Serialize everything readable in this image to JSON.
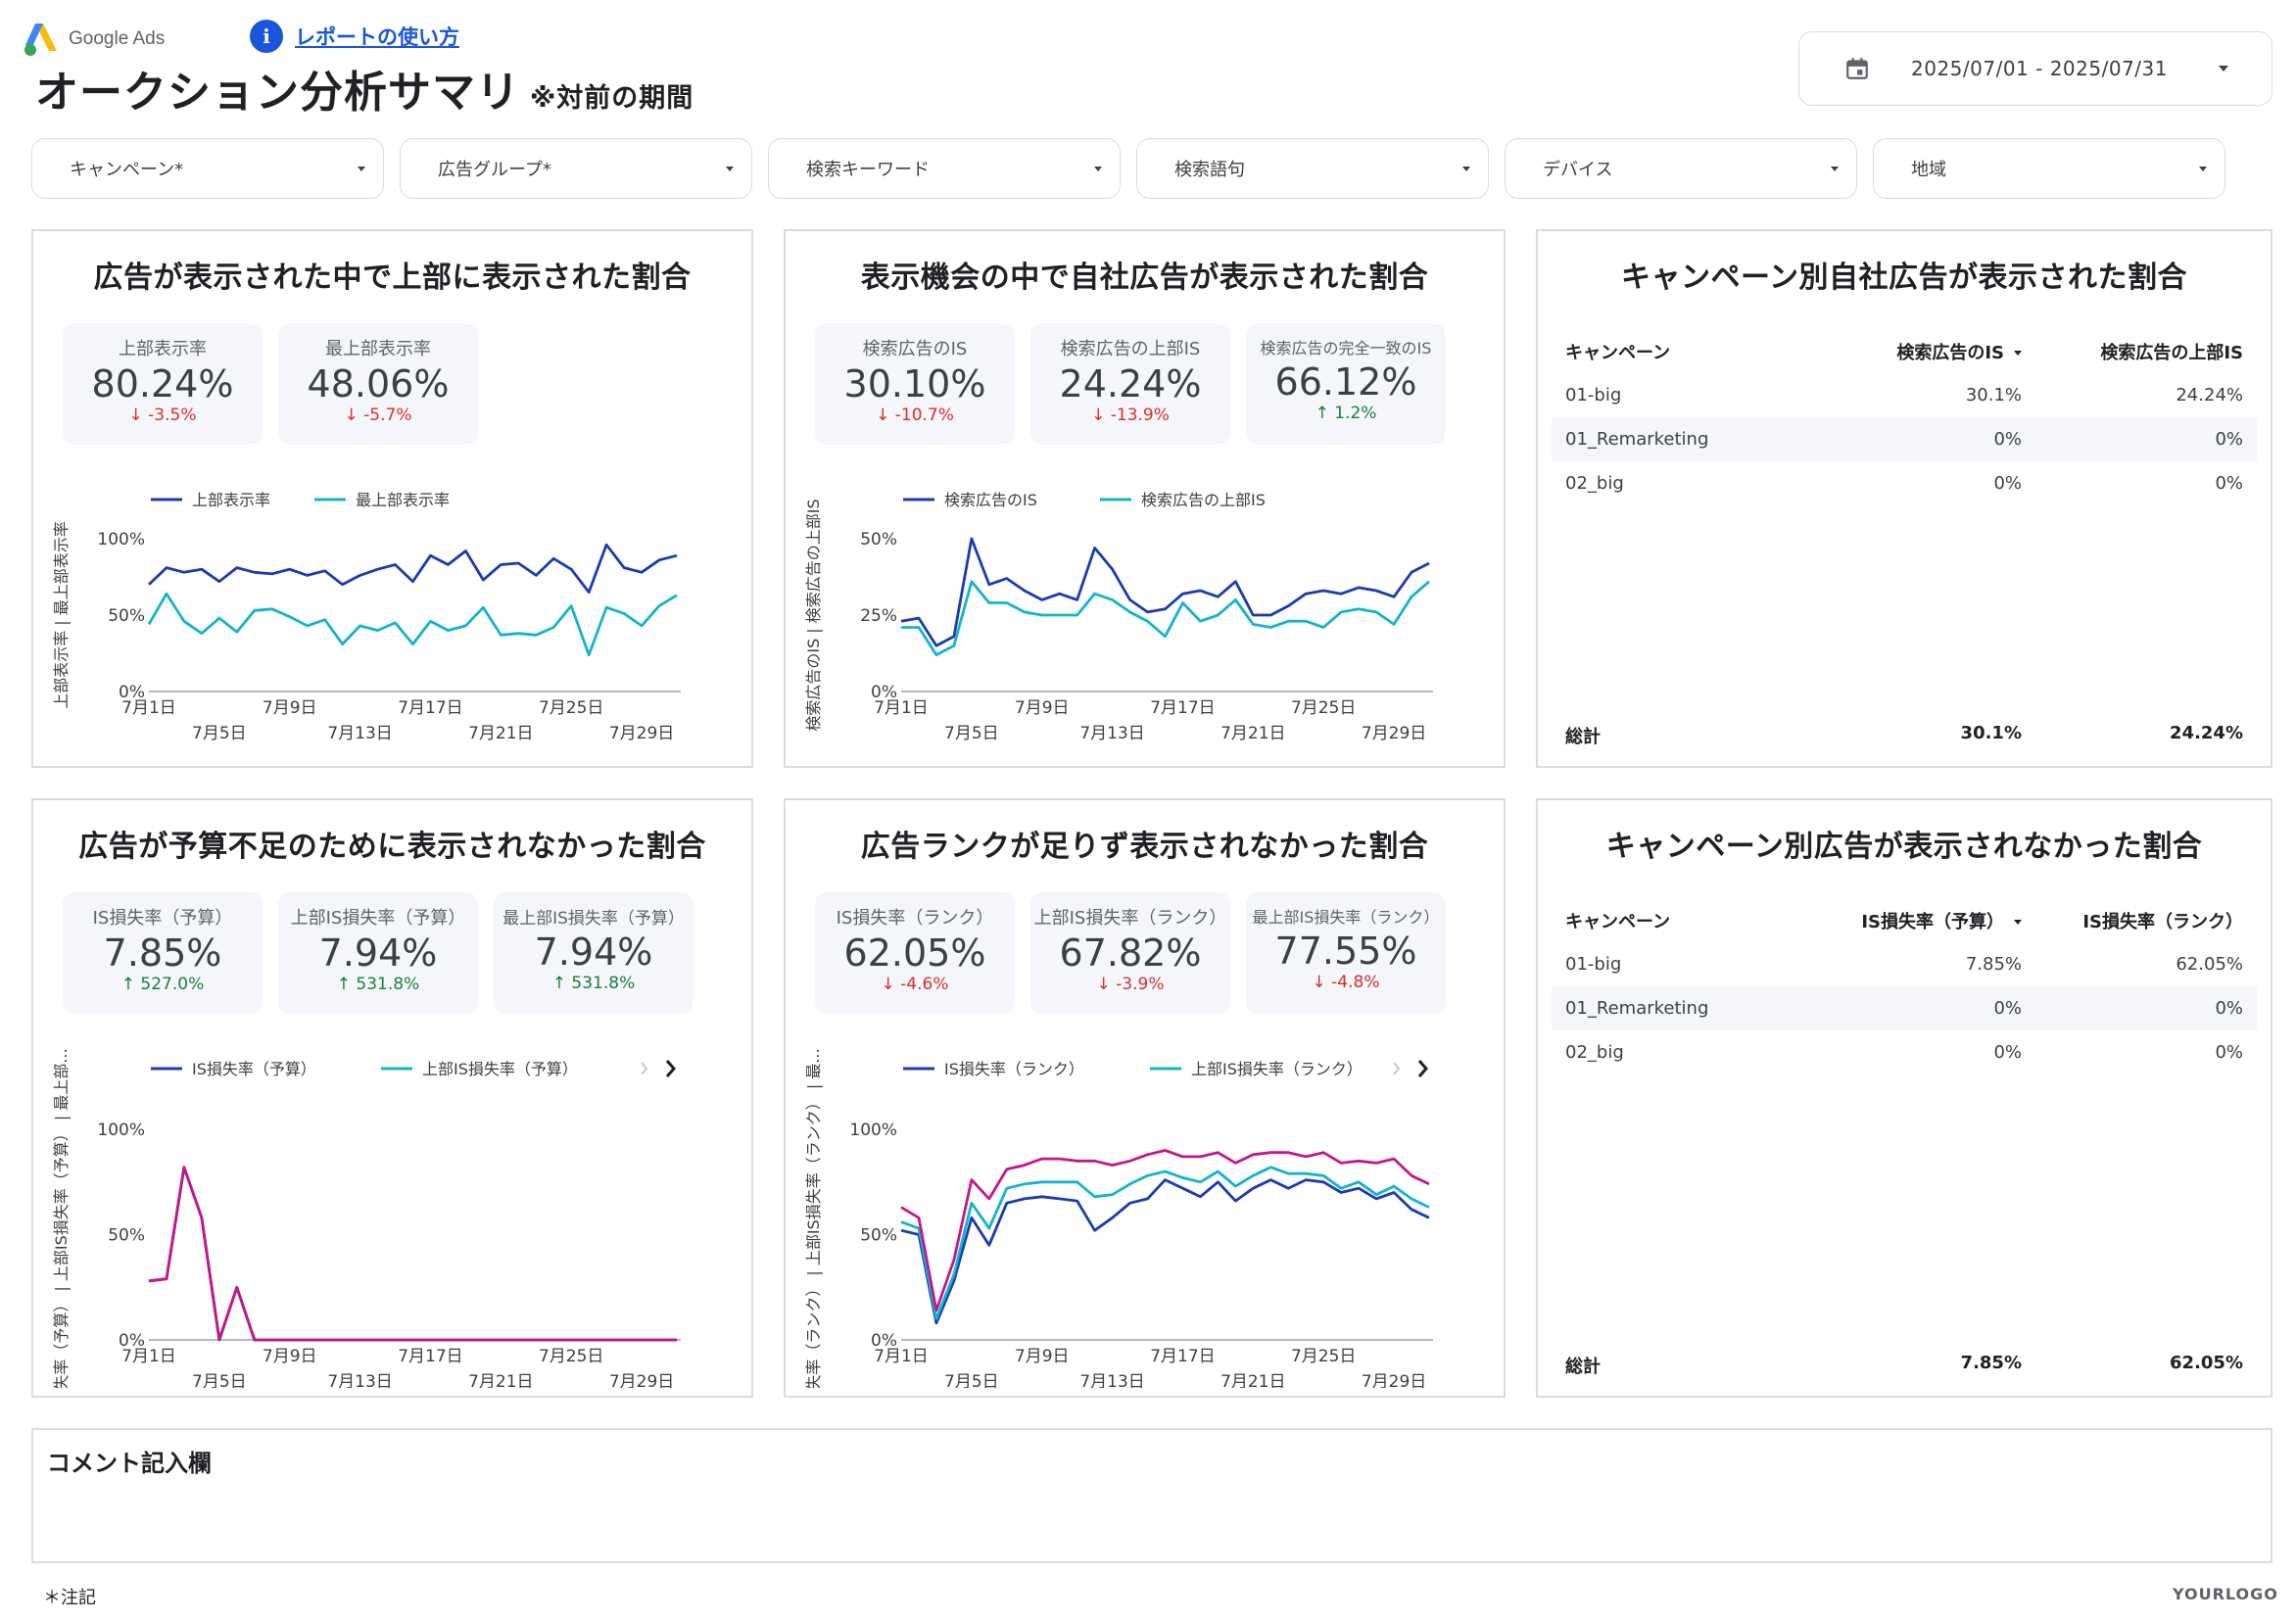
{
  "header": {
    "logo_text": "Google Ads",
    "howto_icon": "i",
    "howto_link": "レポートの使い方",
    "title": "オークション分析サマリ",
    "title_note": "※対前の期間",
    "date_range": "2025/07/01 - 2025/07/31"
  },
  "icons": {
    "logo": "google-ads-logo",
    "info": "info-icon",
    "calendar": "calendar-icon",
    "dropdown": "chevron-down-icon",
    "next": "chevron-right-icon"
  },
  "colors": {
    "series_blue": "#1a3bb5",
    "series_teal": "#12b5cb",
    "series_magenta": "#c5168c",
    "negative": "#d93025",
    "positive": "#188038",
    "link": "#1a56db"
  },
  "filters": [
    {
      "label": "キャンペーン*"
    },
    {
      "label": "広告グループ*"
    },
    {
      "label": "検索キーワード"
    },
    {
      "label": "検索語句"
    },
    {
      "label": "デバイス"
    },
    {
      "label": "地域"
    }
  ],
  "panels": {
    "p1": {
      "title": "広告が表示された中で上部に表示された割合",
      "kpis": [
        {
          "label": "上部表示率",
          "value": "80.24%",
          "delta": "-3.5%",
          "dir": "down"
        },
        {
          "label": "最上部表示率",
          "value": "48.06%",
          "delta": "-5.7%",
          "dir": "down"
        }
      ]
    },
    "p2": {
      "title": "表示機会の中で自社広告が表示された割合",
      "kpis": [
        {
          "label": "検索広告のIS",
          "value": "30.10%",
          "delta": "-10.7%",
          "dir": "down"
        },
        {
          "label": "検索広告の上部IS",
          "value": "24.24%",
          "delta": "-13.9%",
          "dir": "down"
        },
        {
          "label": "検索広告の完全一致のIS",
          "value": "66.12%",
          "delta": "1.2%",
          "dir": "up"
        }
      ]
    },
    "p3": {
      "title": "キャンペーン別自社広告が表示された割合",
      "columns": [
        "キャンペーン",
        "検索広告のIS",
        "検索広告の上部IS"
      ],
      "rows": [
        {
          "name": "01-big",
          "a": "30.1%",
          "b": "24.24%"
        },
        {
          "name": "01_Remarketing",
          "a": "0%",
          "b": "0%"
        },
        {
          "name": "02_big",
          "a": "0%",
          "b": "0%"
        }
      ],
      "total": {
        "label": "総計",
        "a": "30.1%",
        "b": "24.24%"
      }
    },
    "p4": {
      "title": "広告が予算不足のために表示されなかった割合",
      "kpis": [
        {
          "label": "IS損失率（予算）",
          "value": "7.85%",
          "delta": "527.0%",
          "dir": "up"
        },
        {
          "label": "上部IS損失率（予算）",
          "value": "7.94%",
          "delta": "531.8%",
          "dir": "up"
        },
        {
          "label": "最上部IS損失率（予算）",
          "value": "7.94%",
          "delta": "531.8%",
          "dir": "up"
        }
      ]
    },
    "p5": {
      "title": "広告ランクが足りず表示されなかった割合",
      "kpis": [
        {
          "label": "IS損失率（ランク）",
          "value": "62.05%",
          "delta": "-4.6%",
          "dir": "down"
        },
        {
          "label": "上部IS損失率（ランク）",
          "value": "67.82%",
          "delta": "-3.9%",
          "dir": "down"
        },
        {
          "label": "最上部IS損失率（ランク）",
          "value": "77.55%",
          "delta": "-4.8%",
          "dir": "down"
        }
      ]
    },
    "p6": {
      "title": "キャンペーン別広告が表示されなかった割合",
      "columns": [
        "キャンペーン",
        "IS損失率（予算）",
        "IS損失率（ランク）"
      ],
      "rows": [
        {
          "name": "01-big",
          "a": "7.85%",
          "b": "62.05%"
        },
        {
          "name": "01_Remarketing",
          "a": "0%",
          "b": "0%"
        },
        {
          "name": "02_big",
          "a": "0%",
          "b": "0%"
        }
      ],
      "total": {
        "label": "総計",
        "a": "7.85%",
        "b": "62.05%"
      }
    }
  },
  "comment": {
    "label": "コメント記入欄"
  },
  "note": "＊注記",
  "footer_logo": "YOURLOGO",
  "chart_data": [
    {
      "id": "c1",
      "type": "line",
      "x": [
        "7月1日",
        "7月2日",
        "7月3日",
        "7月4日",
        "7月5日",
        "7月6日",
        "7月7日",
        "7月8日",
        "7月9日",
        "7月10日",
        "7月11日",
        "7月12日",
        "7月13日",
        "7月14日",
        "7月15日",
        "7月16日",
        "7月17日",
        "7月18日",
        "7月19日",
        "7月20日",
        "7月21日",
        "7月22日",
        "7月23日",
        "7月24日",
        "7月25日",
        "7月26日",
        "7月27日",
        "7月28日",
        "7月29日",
        "7月30日",
        "7月31日"
      ],
      "xticks_top": [
        "7月1日",
        "7月9日",
        "7月17日",
        "7月25日"
      ],
      "xticks_bottom": [
        "7月5日",
        "7月13日",
        "7月21日",
        "7月29日"
      ],
      "ylabel": "上部表示率 | 最上部表示率",
      "yticks": [
        "0%",
        "50%",
        "100%"
      ],
      "ylim": [
        0,
        100
      ],
      "series": [
        {
          "name": "上部表示率",
          "color": "#1a3bb5",
          "values": [
            70,
            81,
            78,
            80,
            72,
            81,
            78,
            77,
            80,
            76,
            79,
            70,
            76,
            80,
            83,
            72,
            89,
            83,
            92,
            73,
            83,
            84,
            76,
            87,
            80,
            65,
            96,
            81,
            78,
            86,
            89
          ]
        },
        {
          "name": "最上部表示率",
          "color": "#12b5cb",
          "values": [
            44,
            64,
            46,
            38,
            48,
            39,
            53,
            54,
            49,
            43,
            47,
            31,
            43,
            40,
            45,
            31,
            46,
            40,
            43,
            55,
            37,
            38,
            37,
            42,
            56,
            24,
            55,
            51,
            43,
            56,
            63
          ]
        }
      ]
    },
    {
      "id": "c2",
      "type": "line",
      "x": [
        "7月1日",
        "7月2日",
        "7月3日",
        "7月4日",
        "7月5日",
        "7月6日",
        "7月7日",
        "7月8日",
        "7月9日",
        "7月10日",
        "7月11日",
        "7月12日",
        "7月13日",
        "7月14日",
        "7月15日",
        "7月16日",
        "7月17日",
        "7月18日",
        "7月19日",
        "7月20日",
        "7月21日",
        "7月22日",
        "7月23日",
        "7月24日",
        "7月25日",
        "7月26日",
        "7月27日",
        "7月28日",
        "7月29日",
        "7月30日",
        "7月31日"
      ],
      "xticks_top": [
        "7月1日",
        "7月9日",
        "7月17日",
        "7月25日"
      ],
      "xticks_bottom": [
        "7月5日",
        "7月13日",
        "7月21日",
        "7月29日"
      ],
      "ylabel": "検索広告のIS | 検索広告の上部IS",
      "yticks": [
        "0%",
        "25%",
        "50%"
      ],
      "ylim": [
        0,
        50
      ],
      "series": [
        {
          "name": "検索広告のIS",
          "color": "#1a3bb5",
          "values": [
            23,
            24,
            15,
            18,
            50,
            35,
            37,
            33,
            30,
            32,
            30,
            47,
            40,
            30,
            26,
            27,
            32,
            33,
            31,
            36,
            25,
            25,
            28,
            32,
            33,
            32,
            34,
            33,
            31,
            39,
            42
          ]
        },
        {
          "name": "検索広告の上部IS",
          "color": "#12b5cb",
          "values": [
            21,
            21,
            12,
            15,
            36,
            29,
            29,
            26,
            25,
            25,
            25,
            32,
            30,
            26,
            23,
            18,
            29,
            23,
            25,
            30,
            22,
            21,
            23,
            23,
            21,
            26,
            27,
            26,
            22,
            31,
            36
          ]
        }
      ]
    },
    {
      "id": "c4",
      "type": "line",
      "x": [
        "7月1日",
        "7月2日",
        "7月3日",
        "7月4日",
        "7月5日",
        "7月6日",
        "7月7日",
        "7月8日",
        "7月9日",
        "7月10日",
        "7月11日",
        "7月12日",
        "7月13日",
        "7月14日",
        "7月15日",
        "7月16日",
        "7月17日",
        "7月18日",
        "7月19日",
        "7月20日",
        "7月21日",
        "7月22日",
        "7月23日",
        "7月24日",
        "7月25日",
        "7月26日",
        "7月27日",
        "7月28日",
        "7月29日",
        "7月30日",
        "7月31日"
      ],
      "xticks_top": [
        "7月1日",
        "7月9日",
        "7月17日",
        "7月25日"
      ],
      "xticks_bottom": [
        "7月5日",
        "7月13日",
        "7月21日",
        "7月29日"
      ],
      "ylabel": "IS損失率（予算） | 上部IS損失率（予算） | 最上部...",
      "yticks": [
        "0%",
        "50%",
        "100%"
      ],
      "ylim": [
        0,
        100
      ],
      "series": [
        {
          "name": "IS損失率（予算）",
          "color": "#1a3bb5",
          "values": [
            28,
            29,
            82,
            58,
            0,
            25,
            0,
            0,
            0,
            0,
            0,
            0,
            0,
            0,
            0,
            0,
            0,
            0,
            0,
            0,
            0,
            0,
            0,
            0,
            0,
            0,
            0,
            0,
            0,
            0,
            0
          ]
        },
        {
          "name": "上部IS損失率（予算）",
          "color": "#12b5cb",
          "values": [
            28,
            29,
            82,
            58,
            0,
            25,
            0,
            0,
            0,
            0,
            0,
            0,
            0,
            0,
            0,
            0,
            0,
            0,
            0,
            0,
            0,
            0,
            0,
            0,
            0,
            0,
            0,
            0,
            0,
            0,
            0
          ]
        },
        {
          "name": "最上部IS損失率（予算）",
          "color": "#c5168c",
          "values": [
            28,
            29,
            82,
            58,
            0,
            25,
            0,
            0,
            0,
            0,
            0,
            0,
            0,
            0,
            0,
            0,
            0,
            0,
            0,
            0,
            0,
            0,
            0,
            0,
            0,
            0,
            0,
            0,
            0,
            0,
            0
          ]
        }
      ]
    },
    {
      "id": "c5",
      "type": "line",
      "x": [
        "7月1日",
        "7月2日",
        "7月3日",
        "7月4日",
        "7月5日",
        "7月6日",
        "7月7日",
        "7月8日",
        "7月9日",
        "7月10日",
        "7月11日",
        "7月12日",
        "7月13日",
        "7月14日",
        "7月15日",
        "7月16日",
        "7月17日",
        "7月18日",
        "7月19日",
        "7月20日",
        "7月21日",
        "7月22日",
        "7月23日",
        "7月24日",
        "7月25日",
        "7月26日",
        "7月27日",
        "7月28日",
        "7月29日",
        "7月30日",
        "7月31日"
      ],
      "xticks_top": [
        "7月1日",
        "7月9日",
        "7月17日",
        "7月25日"
      ],
      "xticks_bottom": [
        "7月5日",
        "7月13日",
        "7月21日",
        "7月29日"
      ],
      "ylabel": "IS損失率（ランク） | 上部IS損失率（ランク） | 最...",
      "yticks": [
        "0%",
        "50%",
        "100%"
      ],
      "ylim": [
        0,
        100
      ],
      "series": [
        {
          "name": "IS損失率（ランク）",
          "color": "#1a3bb5",
          "values": [
            52,
            50,
            8,
            28,
            58,
            45,
            65,
            67,
            68,
            67,
            66,
            52,
            58,
            65,
            67,
            76,
            72,
            68,
            75,
            66,
            72,
            76,
            72,
            76,
            75,
            70,
            72,
            67,
            70,
            62,
            58
          ]
        },
        {
          "name": "上部IS損失率（ランク）",
          "color": "#12b5cb",
          "values": [
            56,
            53,
            10,
            31,
            65,
            53,
            72,
            74,
            75,
            75,
            75,
            68,
            69,
            74,
            78,
            80,
            77,
            75,
            80,
            73,
            78,
            82,
            79,
            79,
            78,
            72,
            75,
            69,
            73,
            67,
            63
          ]
        },
        {
          "name": "最上部IS損失率（ランク）",
          "color": "#c5168c",
          "values": [
            63,
            58,
            14,
            38,
            76,
            67,
            81,
            83,
            86,
            86,
            85,
            85,
            83,
            85,
            88,
            90,
            87,
            87,
            89,
            84,
            88,
            89,
            89,
            87,
            89,
            84,
            85,
            84,
            86,
            78,
            74
          ]
        }
      ]
    }
  ]
}
